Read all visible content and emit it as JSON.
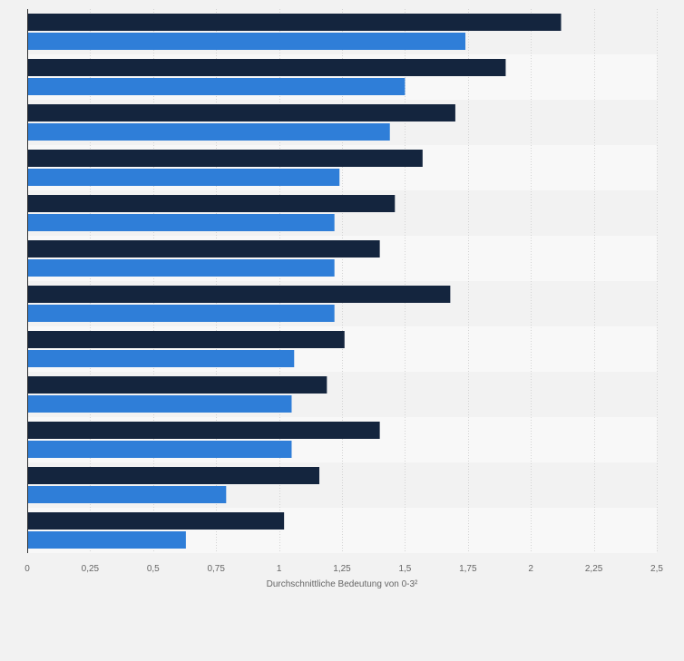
{
  "colors": {
    "background": "#f2f2f2",
    "plot_band_light": "#f8f8f8",
    "plot_band_dark": "#f2f2f2",
    "gridline": "#d3d3d3",
    "axis_line": "#333333",
    "series_1": "#14253e",
    "series_2": "#2f7ed8"
  },
  "chart_data": {
    "type": "bar",
    "orientation": "horizontal",
    "title": "",
    "xlabel": "Durchschnittliche Bedeutung von 0-3²",
    "ylabel": "",
    "xlim": [
      0,
      2.5
    ],
    "xticks": [
      0,
      0.25,
      0.5,
      0.75,
      1,
      1.25,
      1.5,
      1.75,
      2,
      2.25,
      2.5
    ],
    "xtick_labels": [
      "0",
      "0,25",
      "0,5",
      "0,75",
      "1",
      "1,25",
      "1,5",
      "1,75",
      "2",
      "2,25",
      "2,5"
    ],
    "grid": true,
    "legend": "none",
    "categories": [
      "",
      "",
      "",
      "",
      "",
      "",
      "",
      "",
      "",
      "",
      "",
      ""
    ],
    "series": [
      {
        "values": [
          2.12,
          1.9,
          1.7,
          1.57,
          1.46,
          1.4,
          1.68,
          1.26,
          1.19,
          1.4,
          1.16,
          1.02
        ]
      },
      {
        "values": [
          1.74,
          1.5,
          1.44,
          1.24,
          1.22,
          1.22,
          1.22,
          1.06,
          1.05,
          1.05,
          0.79,
          0.63
        ]
      }
    ]
  }
}
